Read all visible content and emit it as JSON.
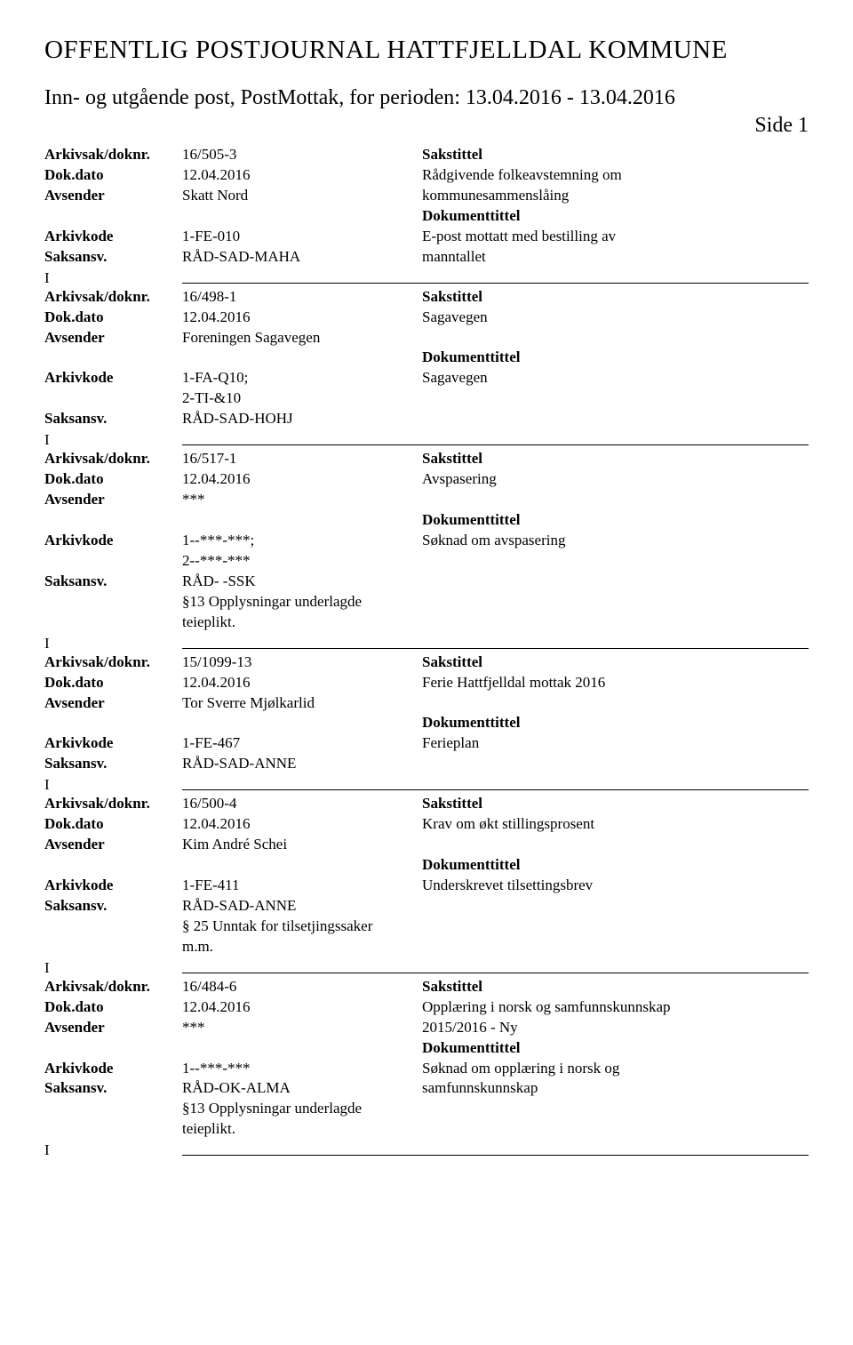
{
  "header": {
    "title": "OFFENTLIG POSTJOURNAL HATTFJELLDAL KOMMUNE",
    "subtitle": "Inn- og utgående post, PostMottak, for perioden: 13.04.2016 - 13.04.2016",
    "side": "Side 1"
  },
  "labels": {
    "arkivsak": "Arkivsak/doknr.",
    "dokdata": "Dok.dato",
    "avsender": "Avsender",
    "arkivkode": "Arkivkode",
    "saksansv": "Saksansv.",
    "sakstittel": "Sakstittel",
    "dokumenttittel": "Dokumenttittel"
  },
  "entries": [
    {
      "direction": "",
      "arkivsak": "16/505-3",
      "dokdata": "12.04.2016",
      "avsender": "Skatt Nord",
      "arkivkode": "1-FE-010",
      "saksansv": "RÅD-SAD-MAHA",
      "note": "",
      "sakstittel": "Rådgivende folkeavstemning om kommunesammenslåing",
      "dokumenttittel": "E-post mottatt med bestilling av manntallet"
    },
    {
      "direction": "I",
      "arkivsak": "16/498-1",
      "dokdata": "12.04.2016",
      "avsender": "Foreningen Sagavegen",
      "arkivkode": "1-FA-Q10; 2-TI-&10",
      "saksansv": "RÅD-SAD-HOHJ",
      "note": "",
      "sakstittel": "Sagavegen",
      "dokumenttittel": "Sagavegen"
    },
    {
      "direction": "I",
      "arkivsak": "16/517-1",
      "dokdata": "12.04.2016",
      "avsender": "***",
      "arkivkode": "1--***-***; 2--***-***",
      "saksansv": "RÅD- -SSK",
      "note": "§13 Opplysningar underlagde teieplikt.",
      "sakstittel": "Avspasering",
      "dokumenttittel": "Søknad om avspasering"
    },
    {
      "direction": "I",
      "arkivsak": "15/1099-13",
      "dokdata": "12.04.2016",
      "avsender": "Tor Sverre Mjølkarlid",
      "arkivkode": "1-FE-467",
      "saksansv": "RÅD-SAD-ANNE",
      "note": "",
      "sakstittel": "Ferie Hattfjelldal mottak 2016",
      "dokumenttittel": "Ferieplan"
    },
    {
      "direction": "I",
      "arkivsak": "16/500-4",
      "dokdata": "12.04.2016",
      "avsender": "Kim André Schei",
      "arkivkode": "1-FE-411",
      "saksansv": "RÅD-SAD-ANNE",
      "note": "§ 25 Unntak for tilsetjingssaker m.m.",
      "sakstittel": "Krav om økt stillingsprosent",
      "dokumenttittel": "Underskrevet tilsettingsbrev"
    },
    {
      "direction": "I",
      "arkivsak": "16/484-6",
      "dokdata": "12.04.2016",
      "avsender": "***",
      "arkivkode": "1--***-***",
      "saksansv": "RÅD-OK-ALMA",
      "note": "§13 Opplysningar underlagde teieplikt.",
      "sakstittel": "Opplæring i norsk og samfunnskunnskap 2015/2016 - Ny",
      "dokumenttittel": "Søknad om opplæring i norsk og samfunnskunnskap"
    }
  ],
  "trailing_direction": "I"
}
